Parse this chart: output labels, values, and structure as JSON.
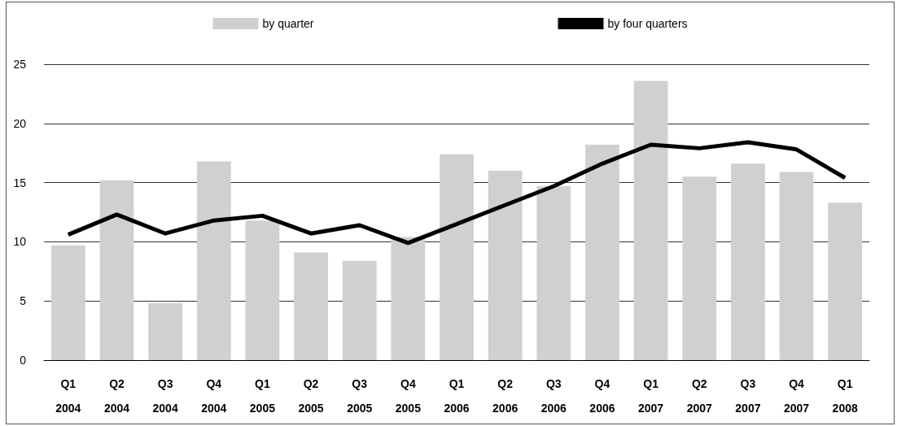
{
  "chart_data": {
    "type": "bar",
    "categories": [
      "Q1\n2004",
      "Q2\n2004",
      "Q3\n2004",
      "Q4\n2004",
      "Q1\n2005",
      "Q2\n2005",
      "Q3\n2005",
      "Q4\n2005",
      "Q1\n2006",
      "Q2\n2006",
      "Q3\n2006",
      "Q4\n2006",
      "Q1\n2007",
      "Q2\n2007",
      "Q3\n2007",
      "Q4\n2007",
      "Q1\n2008"
    ],
    "series": [
      {
        "name": "by quarter",
        "color": "#cfd0d2",
        "values": [
          9.7,
          15.2,
          4.8,
          16.8,
          11.8,
          9.1,
          8.4,
          10.4,
          17.4,
          16.0,
          14.7,
          18.2,
          23.6,
          15.5,
          16.6,
          15.9,
          13.3
        ]
      },
      {
        "name": "by four quarters",
        "type": "line",
        "color": "#000000",
        "values": [
          10.6,
          12.3,
          10.7,
          11.8,
          12.2,
          10.7,
          11.4,
          9.9,
          11.5,
          13.1,
          14.7,
          16.6,
          18.2,
          17.9,
          18.4,
          17.8,
          15.4
        ]
      }
    ],
    "ylim": [
      0,
      25
    ],
    "yticks": [
      0,
      5,
      10,
      15,
      20,
      25
    ],
    "grid": "y",
    "legend": "top",
    "marker": "none",
    "line_style": "solid"
  }
}
